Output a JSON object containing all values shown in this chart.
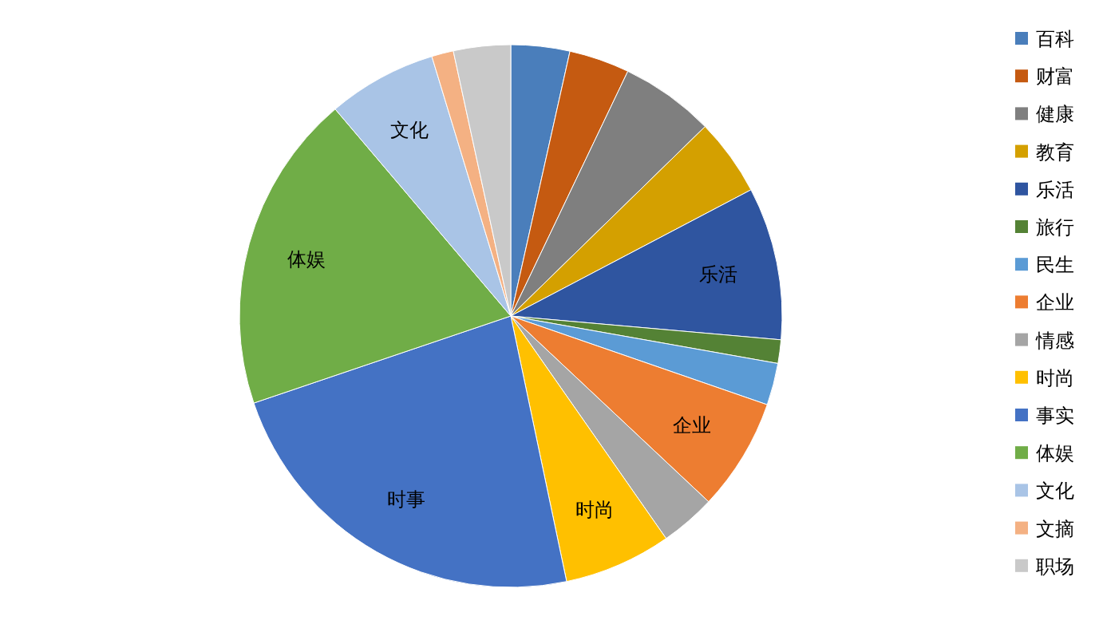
{
  "chart_data": {
    "type": "pie",
    "categories": [
      "百科",
      "财富",
      "健康",
      "教育",
      "乐活",
      "旅行",
      "民生",
      "企业",
      "情感",
      "时尚",
      "事实",
      "体娱",
      "文化",
      "文摘",
      "职场"
    ],
    "values": [
      3.5,
      3.6,
      5.6,
      4.6,
      9.1,
      1.4,
      2.5,
      6.7,
      3.3,
      6.4,
      23.1,
      19.0,
      6.5,
      1.3,
      3.4
    ],
    "colors": [
      "#4a7ebb",
      "#c55a11",
      "#7f7f7f",
      "#d4a000",
      "#2f55a0",
      "#548235",
      "#5b9bd5",
      "#ed7d31",
      "#a5a5a5",
      "#ffc000",
      "#4472c4",
      "#70ad47",
      "#a9c4e6",
      "#f4b183",
      "#c9c9c9"
    ],
    "annotations": [
      {
        "text": "乐活",
        "x": "乐活"
      },
      {
        "text": "企业",
        "x": "企业"
      },
      {
        "text": "时尚",
        "x": "时尚"
      },
      {
        "text": "时事",
        "x": "事实"
      },
      {
        "text": "体娱",
        "x": "体娱"
      },
      {
        "text": "文化",
        "x": "文化"
      }
    ],
    "legend": "right"
  }
}
